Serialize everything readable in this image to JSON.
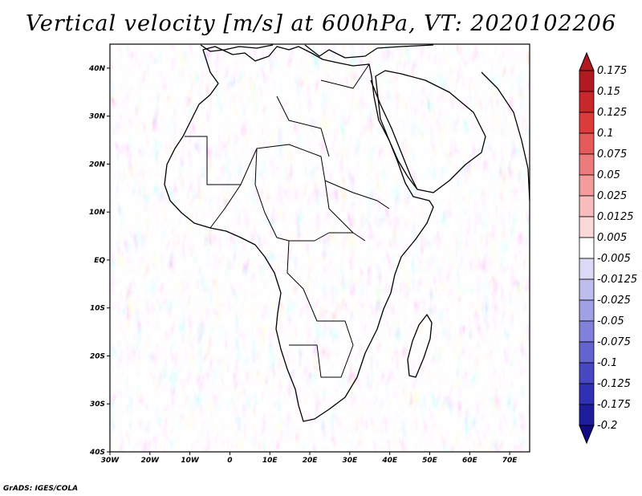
{
  "title": "Vertical velocity [m/s] at 600hPa, VT: 2020102206",
  "footer": "GrADS: IGES/COLA",
  "map": {
    "lat_labels": [
      "40N",
      "30N",
      "20N",
      "10N",
      "EQ",
      "10S",
      "20S",
      "30S",
      "40S"
    ],
    "lon_labels": [
      "30W",
      "20W",
      "10W",
      "0",
      "10E",
      "20E",
      "30E",
      "40E",
      "50E",
      "60E",
      "70E"
    ],
    "lat_range": [
      -40,
      45
    ],
    "lon_range": [
      -30,
      75
    ]
  },
  "colorbar": {
    "labels": [
      "0.175",
      "0.15",
      "0.125",
      "0.1",
      "0.075",
      "0.05",
      "0.025",
      "0.0125",
      "0.005",
      "-0.005",
      "-0.0125",
      "-0.025",
      "-0.05",
      "-0.075",
      "-0.1",
      "-0.125",
      "-0.175",
      "-0.2"
    ],
    "colors": [
      "#b01a20",
      "#c8282a",
      "#dc3c3c",
      "#e65a5a",
      "#ee7b7b",
      "#f39c9c",
      "#f8bcbc",
      "#fbd9d9",
      "#ffffff",
      "#dadaf6",
      "#bdbdee",
      "#a0a0e5",
      "#8181db",
      "#6464d0",
      "#4848c2",
      "#3030b2",
      "#1e1e9c",
      "#100a85"
    ]
  }
}
